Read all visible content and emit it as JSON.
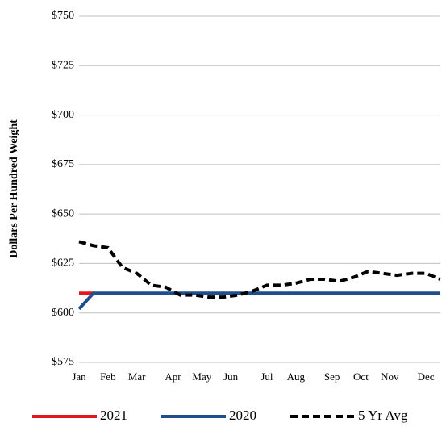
{
  "chart_data": {
    "type": "line",
    "y_label": "Dollars Per Hundred Weight",
    "x": [
      1,
      3,
      5,
      7,
      9,
      11,
      13,
      15,
      17,
      19,
      21,
      23,
      25,
      27,
      29,
      31,
      33,
      35,
      37,
      39,
      41,
      43,
      45,
      47,
      49,
      51
    ],
    "xlim": [
      1,
      51
    ],
    "xticks": [
      {
        "value": 1,
        "label": "Jan"
      },
      {
        "value": 5,
        "label": "Feb"
      },
      {
        "value": 9,
        "label": "Mar"
      },
      {
        "value": 14,
        "label": "Apr"
      },
      {
        "value": 18,
        "label": "May"
      },
      {
        "value": 22,
        "label": "Jun"
      },
      {
        "value": 27,
        "label": "Jul"
      },
      {
        "value": 31,
        "label": "Aug"
      },
      {
        "value": 36,
        "label": "Sep"
      },
      {
        "value": 40,
        "label": "Oct"
      },
      {
        "value": 44,
        "label": "Nov"
      },
      {
        "value": 49,
        "label": "Dec"
      }
    ],
    "ylim": [
      575,
      750
    ],
    "yticks": [
      {
        "value": 575,
        "label": "$575"
      },
      {
        "value": 600,
        "label": "$600"
      },
      {
        "value": 625,
        "label": "$625"
      },
      {
        "value": 650,
        "label": "$650"
      },
      {
        "value": 675,
        "label": "$675"
      },
      {
        "value": 700,
        "label": "$700"
      },
      {
        "value": 725,
        "label": "$725"
      },
      {
        "value": 750,
        "label": "$750"
      }
    ],
    "grid": true,
    "legend": "bottom",
    "series": [
      {
        "name": "2021",
        "color": "#e8141b",
        "dashed": false,
        "values": [
          610,
          610,
          null,
          null,
          null,
          null,
          null,
          null,
          null,
          null,
          null,
          null,
          null,
          null,
          null,
          null,
          null,
          null,
          null,
          null,
          null,
          null,
          null,
          null,
          null,
          null
        ]
      },
      {
        "name": "2020",
        "color": "#1f4e8c",
        "dashed": false,
        "values": [
          602,
          610,
          610,
          610,
          610,
          610,
          610,
          610,
          610,
          610,
          610,
          610,
          610,
          610,
          610,
          610,
          610,
          610,
          610,
          610,
          610,
          610,
          610,
          610,
          610,
          610
        ]
      },
      {
        "name": "5 Yr Avg",
        "color": "#000000",
        "dashed": true,
        "values": [
          636,
          634,
          633,
          623,
          620,
          614,
          613,
          609,
          609,
          608,
          608,
          609,
          611,
          614,
          614,
          615,
          617,
          617,
          616,
          618,
          621,
          620,
          619,
          620,
          620,
          617
        ]
      }
    ]
  }
}
